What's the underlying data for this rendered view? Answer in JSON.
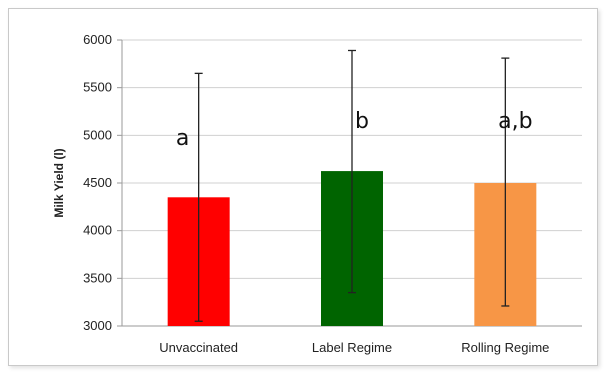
{
  "chart_data": {
    "type": "bar",
    "ylabel": "Milk Yield (l)",
    "xlabel": "",
    "title": "",
    "ylim": [
      3000,
      6000
    ],
    "yticks": [
      3000,
      3500,
      4000,
      4500,
      5000,
      5500,
      6000
    ],
    "grid": true,
    "legend": "none",
    "categories": [
      "Unvaccinated",
      "Label Regime",
      "Rolling Regime"
    ],
    "values": [
      4350,
      4625,
      4500
    ],
    "error_low": [
      3050,
      3350,
      3210
    ],
    "error_high": [
      5650,
      5890,
      5810
    ],
    "significance_labels": [
      "a",
      "b",
      "a,b"
    ],
    "colors": [
      "#ff0000",
      "#006400",
      "#f79646"
    ]
  }
}
